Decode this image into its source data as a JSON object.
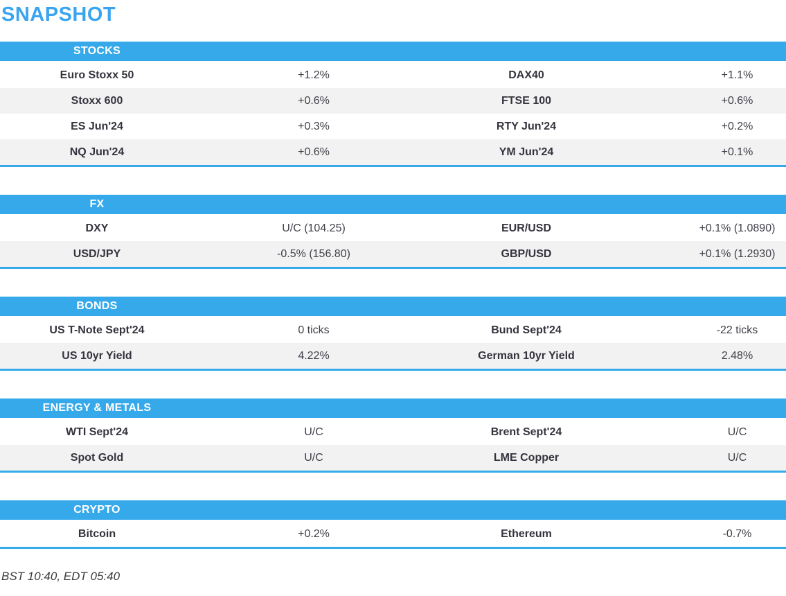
{
  "title": "SNAPSHOT",
  "colors": {
    "accent": "#36a9ea",
    "title": "#3aa4f0",
    "stripe": "#f2f2f2",
    "text": "#34343e"
  },
  "sections": [
    {
      "title": "STOCKS",
      "rows": [
        {
          "label1": "Euro Stoxx 50",
          "value1": "+1.2%",
          "label2": "DAX40",
          "value2": "+1.1%"
        },
        {
          "label1": "Stoxx 600",
          "value1": "+0.6%",
          "label2": "FTSE 100",
          "value2": "+0.6%"
        },
        {
          "label1": "ES Jun'24",
          "value1": "+0.3%",
          "label2": "RTY Jun'24",
          "value2": "+0.2%"
        },
        {
          "label1": "NQ Jun'24",
          "value1": "+0.6%",
          "label2": "YM Jun'24",
          "value2": "+0.1%"
        }
      ]
    },
    {
      "title": "FX",
      "rows": [
        {
          "label1": "DXY",
          "value1": "U/C (104.25)",
          "label2": "EUR/USD",
          "value2": "+0.1% (1.0890)"
        },
        {
          "label1": "USD/JPY",
          "value1": "-0.5% (156.80)",
          "label2": "GBP/USD",
          "value2": "+0.1% (1.2930)"
        }
      ]
    },
    {
      "title": "BONDS",
      "rows": [
        {
          "label1": "US T-Note Sept'24",
          "value1": "0 ticks",
          "label2": "Bund Sept'24",
          "value2": "-22 ticks"
        },
        {
          "label1": "US 10yr Yield",
          "value1": "4.22%",
          "label2": "German 10yr Yield",
          "value2": "2.48%"
        }
      ]
    },
    {
      "title": "ENERGY & METALS",
      "rows": [
        {
          "label1": "WTI Sept'24",
          "value1": "U/C",
          "label2": "Brent Sept'24",
          "value2": "U/C"
        },
        {
          "label1": "Spot Gold",
          "value1": "U/C",
          "label2": "LME Copper",
          "value2": "U/C"
        }
      ]
    },
    {
      "title": "CRYPTO",
      "rows": [
        {
          "label1": "Bitcoin",
          "value1": "+0.2%",
          "label2": "Ethereum",
          "value2": "-0.7%"
        }
      ]
    }
  ],
  "footer": {
    "timestamps": "BST 10:40, EDT 05:40"
  }
}
